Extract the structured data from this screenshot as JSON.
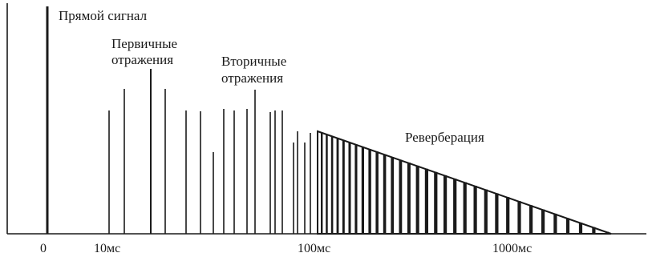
{
  "labels": {
    "direct": "Прямой сигнал",
    "early_line1": "Первичные",
    "early_line2": "отражения",
    "late_line1": "Вторичные",
    "late_line2": "отражения",
    "reverb": "Реверберация"
  },
  "ticks": [
    "0",
    "10мс",
    "100мс",
    "1000мс"
  ]
}
